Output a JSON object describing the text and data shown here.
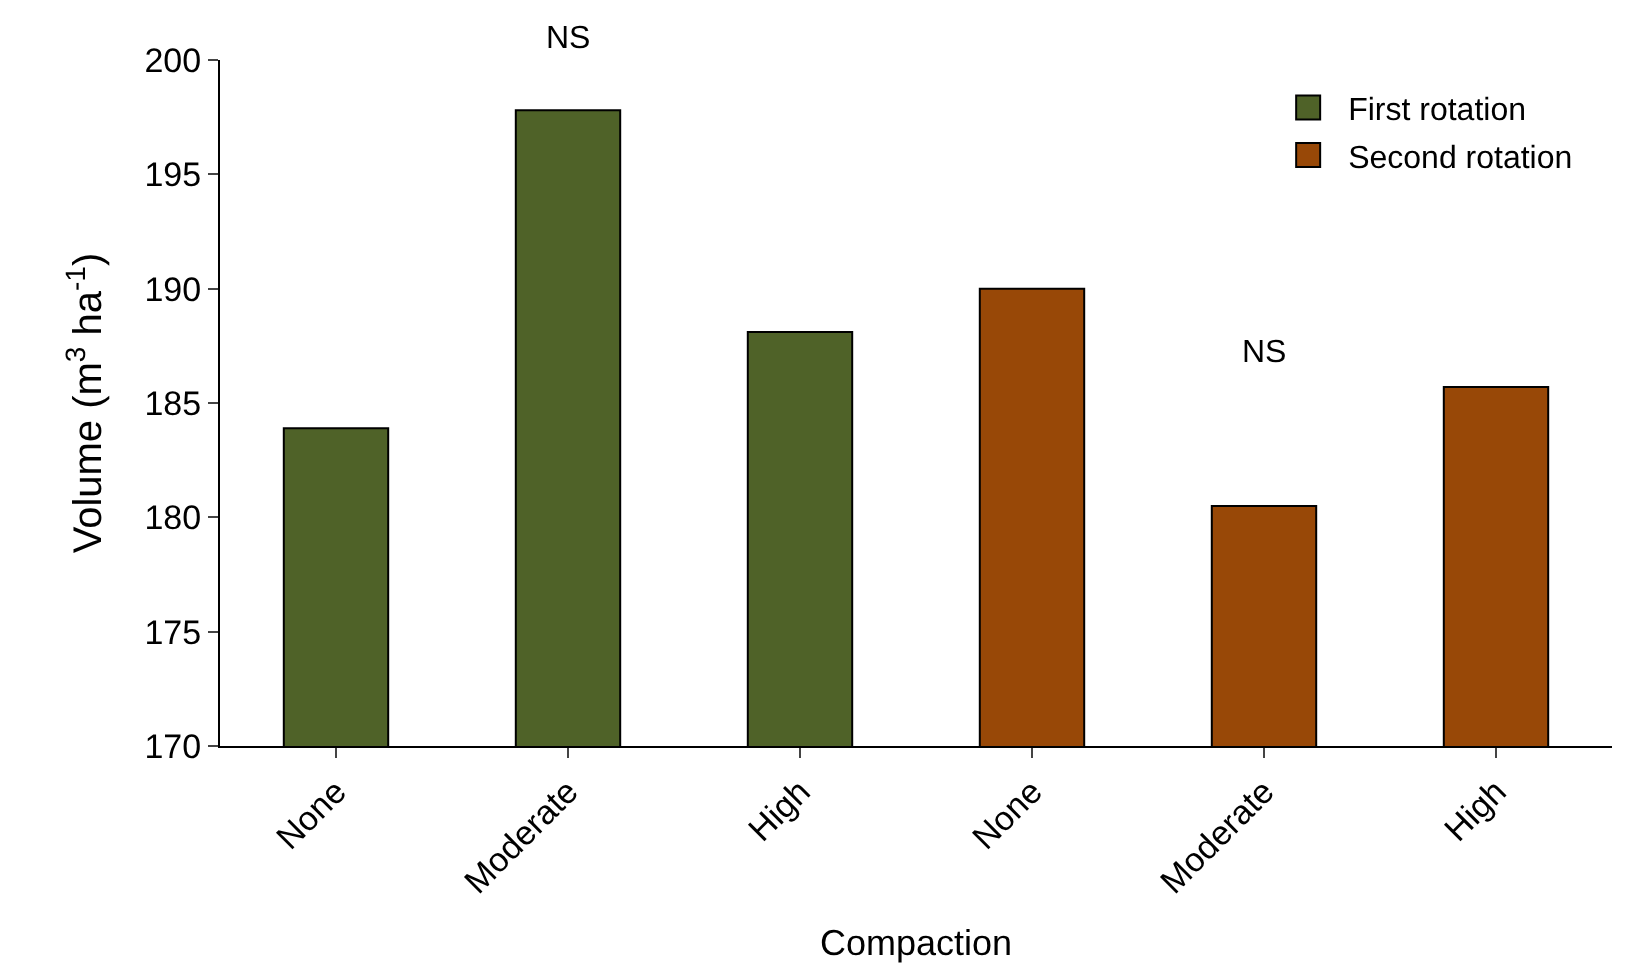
{
  "chart_data": {
    "type": "bar",
    "xlabel": "Compaction",
    "ylabel": "Volume (m$^{3}$ ha$^{-1}$)",
    "categories": [
      "None",
      "Moderate",
      "High",
      "None",
      "Moderate",
      "High"
    ],
    "series": [
      {
        "name": "First rotation",
        "color": "#4f6228",
        "values": [
          183.9,
          197.8,
          188.1,
          null,
          null,
          null
        ]
      },
      {
        "name": "Second rotation",
        "color": "#984807",
        "values": [
          null,
          null,
          null,
          190.0,
          180.5,
          185.7
        ]
      }
    ],
    "ylim": [
      170,
      200
    ],
    "yticks": [
      170,
      175,
      180,
      185,
      190,
      195,
      200
    ],
    "annotations": [
      "NS",
      "NS"
    ],
    "legend": "top right"
  }
}
